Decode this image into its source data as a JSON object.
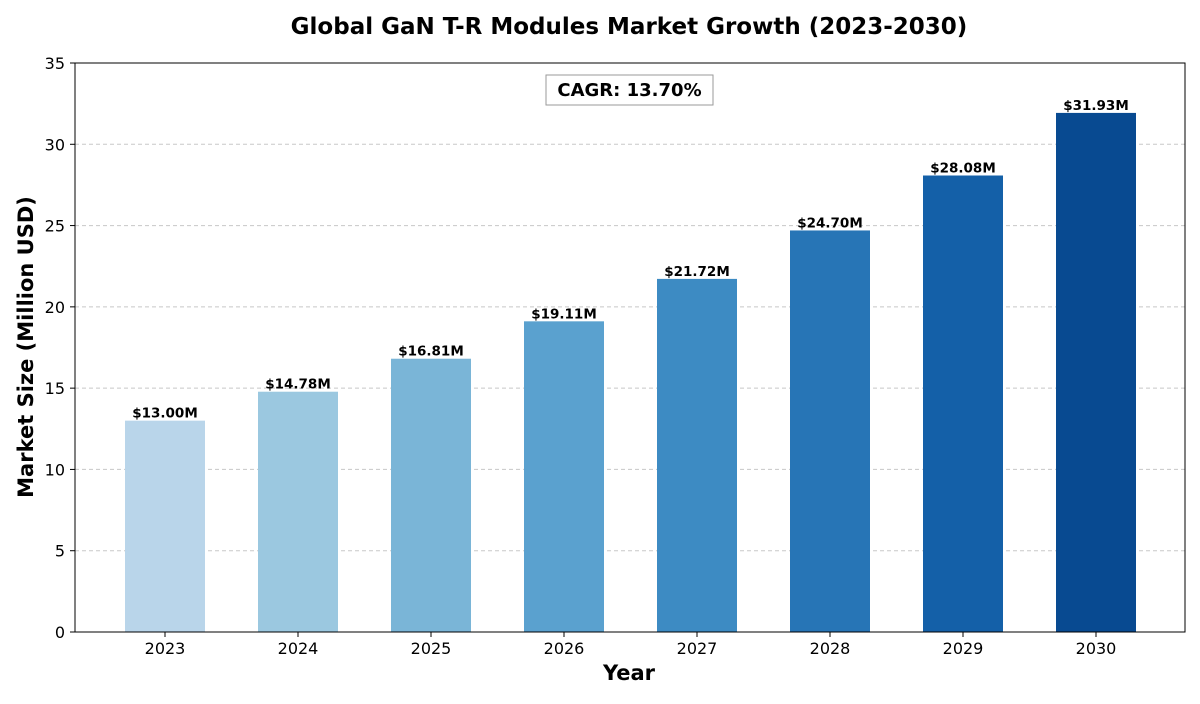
{
  "chart_data": {
    "type": "bar",
    "title": "Global GaN T-R Modules Market Growth (2023-2030)",
    "xlabel": "Year",
    "ylabel": "Market Size (Million USD)",
    "categories": [
      "2023",
      "2024",
      "2025",
      "2026",
      "2027",
      "2028",
      "2029",
      "2030"
    ],
    "values": [
      13.0,
      14.78,
      16.81,
      19.11,
      21.72,
      24.7,
      28.08,
      31.93
    ],
    "data_labels": [
      "$13.00M",
      "$14.78M",
      "$16.81M",
      "$19.11M",
      "$21.72M",
      "$24.70M",
      "$28.08M",
      "$31.93M"
    ],
    "colors": [
      "#b9d5ea",
      "#9bc8e0",
      "#7ab5d7",
      "#5aa1cf",
      "#3d8bc3",
      "#2775b6",
      "#1460a8",
      "#084a91"
    ],
    "ylim": [
      0,
      35
    ],
    "yticks": [
      0,
      5,
      10,
      15,
      20,
      25,
      30,
      35
    ],
    "grid": "y-dashed",
    "annotation": "CAGR: 13.70%"
  }
}
